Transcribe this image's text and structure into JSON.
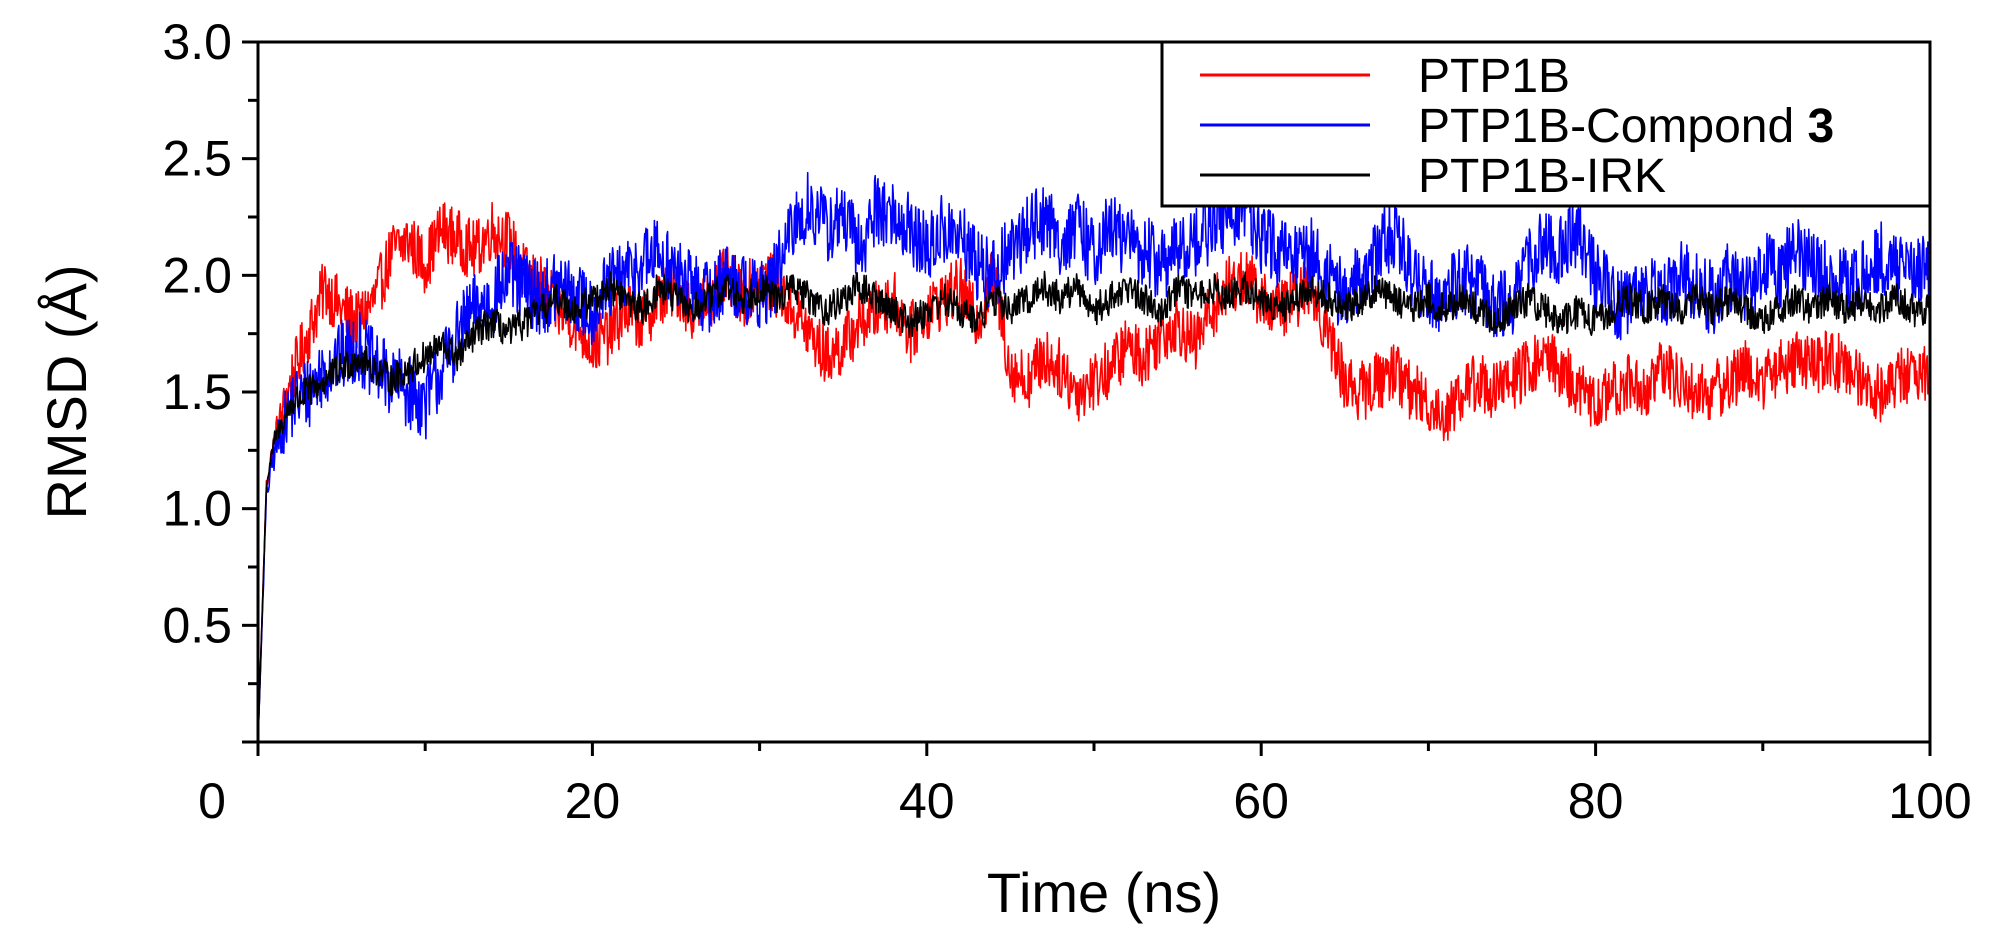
{
  "chart_data": {
    "type": "line",
    "title": "",
    "xlabel": "Time (ns)",
    "ylabel": "RMSD (Å)",
    "xlim": [
      0,
      100
    ],
    "ylim": [
      0,
      3.0
    ],
    "x_ticks": [
      20,
      40,
      60,
      80,
      100
    ],
    "x_tick_labels": [
      "20",
      "40",
      "60",
      "80",
      "100"
    ],
    "y_ticks": [
      0.5,
      1.0,
      1.5,
      2.0,
      2.5,
      3.0
    ],
    "y_tick_labels": [
      "0.5",
      "1.0",
      "1.5",
      "2.0",
      "2.5",
      "3.0"
    ],
    "origin_label": "0",
    "grid": false,
    "legend_position": "top-right",
    "series": [
      {
        "name": "PTP1B",
        "color": "#ff0000",
        "x": [
          0,
          0.5,
          1,
          2,
          3,
          4,
          5,
          6,
          7,
          8,
          9,
          10,
          11,
          12,
          13,
          14,
          15,
          16,
          17,
          18,
          19,
          20,
          21,
          22,
          23,
          24,
          25,
          26,
          27,
          28,
          29,
          30,
          31,
          32,
          33,
          34,
          35,
          36,
          37,
          38,
          39,
          40,
          41,
          42,
          43,
          44,
          45,
          46,
          47,
          48,
          49,
          50,
          51,
          52,
          53,
          54,
          55,
          56,
          57,
          58,
          59,
          60,
          61,
          62,
          63,
          64,
          65,
          66,
          67,
          68,
          69,
          70,
          71,
          72,
          73,
          74,
          75,
          76,
          77,
          78,
          79,
          80,
          81,
          82,
          83,
          84,
          85,
          86,
          87,
          88,
          89,
          90,
          91,
          92,
          93,
          94,
          95,
          96,
          97,
          98,
          99,
          100
        ],
        "y": [
          0.0,
          1.1,
          1.3,
          1.55,
          1.75,
          1.95,
          1.85,
          1.8,
          1.9,
          2.1,
          2.15,
          2.05,
          2.2,
          2.15,
          2.1,
          2.2,
          2.15,
          2.0,
          1.95,
          1.85,
          1.8,
          1.7,
          1.75,
          1.85,
          1.8,
          1.9,
          1.95,
          1.85,
          1.9,
          2.0,
          1.9,
          2.0,
          1.95,
          1.85,
          1.75,
          1.65,
          1.7,
          1.8,
          1.85,
          1.9,
          1.75,
          1.85,
          1.9,
          1.95,
          1.8,
          2.0,
          1.6,
          1.55,
          1.65,
          1.6,
          1.5,
          1.55,
          1.6,
          1.7,
          1.65,
          1.75,
          1.8,
          1.7,
          1.85,
          1.95,
          2.0,
          1.9,
          1.85,
          1.9,
          1.95,
          1.75,
          1.55,
          1.5,
          1.55,
          1.6,
          1.5,
          1.45,
          1.4,
          1.5,
          1.55,
          1.5,
          1.55,
          1.6,
          1.65,
          1.6,
          1.5,
          1.45,
          1.5,
          1.55,
          1.5,
          1.6,
          1.55,
          1.5,
          1.5,
          1.55,
          1.6,
          1.55,
          1.6,
          1.65,
          1.6,
          1.65,
          1.6,
          1.55,
          1.5,
          1.55,
          1.6,
          1.55
        ]
      },
      {
        "name": "PTP1B-Compond 3",
        "color": "#0000ff",
        "x": [
          0,
          0.5,
          1,
          2,
          3,
          4,
          5,
          6,
          7,
          8,
          9,
          10,
          11,
          12,
          13,
          14,
          15,
          16,
          17,
          18,
          19,
          20,
          21,
          22,
          23,
          24,
          25,
          26,
          27,
          28,
          29,
          30,
          31,
          32,
          33,
          34,
          35,
          36,
          37,
          38,
          39,
          40,
          41,
          42,
          43,
          44,
          45,
          46,
          47,
          48,
          49,
          50,
          51,
          52,
          53,
          54,
          55,
          56,
          57,
          58,
          59,
          60,
          61,
          62,
          63,
          64,
          65,
          66,
          67,
          68,
          69,
          70,
          71,
          72,
          73,
          74,
          75,
          76,
          77,
          78,
          79,
          80,
          81,
          82,
          83,
          84,
          85,
          86,
          87,
          88,
          89,
          90,
          91,
          92,
          93,
          94,
          95,
          96,
          97,
          98,
          99,
          100
        ],
        "y": [
          0.0,
          1.05,
          1.25,
          1.45,
          1.5,
          1.6,
          1.65,
          1.7,
          1.6,
          1.55,
          1.5,
          1.45,
          1.6,
          1.75,
          1.85,
          1.9,
          2.0,
          1.95,
          1.9,
          1.95,
          1.9,
          1.85,
          1.95,
          2.0,
          2.05,
          2.1,
          2.0,
          1.95,
          1.9,
          2.0,
          1.95,
          1.9,
          2.0,
          2.2,
          2.3,
          2.2,
          2.25,
          2.1,
          2.3,
          2.25,
          2.2,
          2.1,
          2.2,
          2.15,
          2.05,
          2.0,
          2.1,
          2.2,
          2.25,
          2.15,
          2.2,
          2.1,
          2.2,
          2.15,
          2.1,
          2.05,
          2.1,
          2.15,
          2.2,
          2.25,
          2.3,
          2.15,
          2.1,
          2.05,
          2.1,
          2.0,
          1.9,
          2.0,
          2.1,
          2.2,
          2.0,
          1.95,
          1.9,
          2.0,
          1.95,
          1.85,
          1.9,
          2.05,
          2.15,
          2.1,
          2.2,
          2.0,
          1.9,
          1.85,
          1.95,
          1.9,
          2.0,
          1.95,
          1.9,
          2.0,
          1.95,
          2.05,
          2.0,
          2.1,
          2.05,
          2.0,
          1.95,
          2.0,
          2.1,
          2.0,
          2.05,
          2.0
        ]
      },
      {
        "name": "PTP1B-IRK",
        "color": "#000000",
        "x": [
          0,
          0.5,
          1,
          2,
          3,
          4,
          5,
          6,
          7,
          8,
          9,
          10,
          11,
          12,
          13,
          14,
          15,
          16,
          17,
          18,
          19,
          20,
          21,
          22,
          23,
          24,
          25,
          26,
          27,
          28,
          29,
          30,
          31,
          32,
          33,
          34,
          35,
          36,
          37,
          38,
          39,
          40,
          41,
          42,
          43,
          44,
          45,
          46,
          47,
          48,
          49,
          50,
          51,
          52,
          53,
          54,
          55,
          56,
          57,
          58,
          59,
          60,
          61,
          62,
          63,
          64,
          65,
          66,
          67,
          68,
          69,
          70,
          71,
          72,
          73,
          74,
          75,
          76,
          77,
          78,
          79,
          80,
          81,
          82,
          83,
          84,
          85,
          86,
          87,
          88,
          89,
          90,
          91,
          92,
          93,
          94,
          95,
          96,
          97,
          98,
          99,
          100
        ],
        "y": [
          0.0,
          1.1,
          1.3,
          1.45,
          1.5,
          1.55,
          1.6,
          1.65,
          1.6,
          1.55,
          1.6,
          1.65,
          1.7,
          1.65,
          1.75,
          1.8,
          1.75,
          1.8,
          1.85,
          1.9,
          1.85,
          1.9,
          1.95,
          1.9,
          1.85,
          1.95,
          1.9,
          1.85,
          1.9,
          1.95,
          1.9,
          1.95,
          1.9,
          1.95,
          1.9,
          1.85,
          1.9,
          1.95,
          1.9,
          1.85,
          1.8,
          1.85,
          1.9,
          1.85,
          1.8,
          1.9,
          1.85,
          1.9,
          1.95,
          1.9,
          1.95,
          1.85,
          1.9,
          1.95,
          1.9,
          1.85,
          1.95,
          1.9,
          1.95,
          1.9,
          1.95,
          1.9,
          1.85,
          1.9,
          1.95,
          1.9,
          1.85,
          1.9,
          1.95,
          1.9,
          1.85,
          1.9,
          1.85,
          1.9,
          1.85,
          1.8,
          1.85,
          1.9,
          1.85,
          1.8,
          1.85,
          1.8,
          1.85,
          1.9,
          1.85,
          1.9,
          1.85,
          1.9,
          1.85,
          1.9,
          1.85,
          1.8,
          1.85,
          1.9,
          1.85,
          1.9,
          1.85,
          1.9,
          1.85,
          1.9,
          1.85,
          1.85
        ]
      }
    ],
    "legend": {
      "entries": [
        {
          "text": "PTP1B",
          "bold_suffix": ""
        },
        {
          "text": "PTP1B-Compond ",
          "bold_suffix": "3"
        },
        {
          "text": "PTP1B-IRK",
          "bold_suffix": ""
        }
      ]
    }
  }
}
